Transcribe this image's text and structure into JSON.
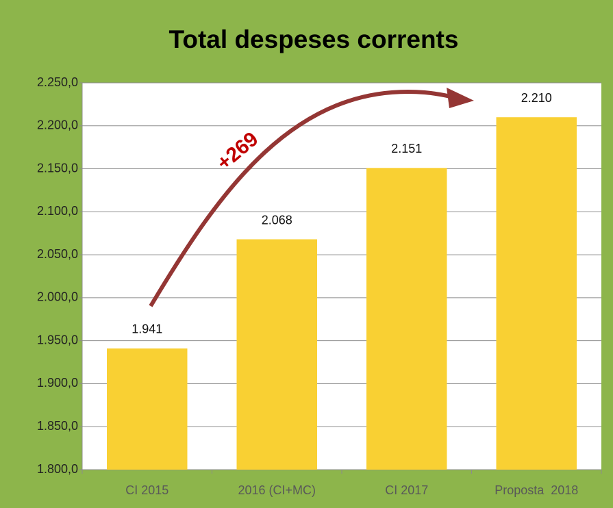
{
  "chart_data": {
    "type": "bar",
    "title": "Total despeses corrents",
    "categories": [
      "CI 2015",
      "2016 (CI+MC)",
      "CI 2017",
      "Proposta  2018"
    ],
    "values": [
      1941,
      2068,
      2151,
      2210
    ],
    "value_labels": [
      "1.941",
      "2.068",
      "2.151",
      "2.210"
    ],
    "color": "#f9d033",
    "ylim": [
      1800,
      2250
    ],
    "yticks": [
      {
        "value": 1800,
        "label": "1.800,0"
      },
      {
        "value": 1850,
        "label": "1.850,0"
      },
      {
        "value": 1900,
        "label": "1.900,0"
      },
      {
        "value": 1950,
        "label": "1.950,0"
      },
      {
        "value": 2000,
        "label": "2.000,0"
      },
      {
        "value": 2050,
        "label": "2.050,0"
      },
      {
        "value": 2100,
        "label": "2.100,0"
      },
      {
        "value": 2150,
        "label": "2.150,0"
      },
      {
        "value": 2200,
        "label": "2.200,0"
      },
      {
        "value": 2250,
        "label": "2.250,0"
      }
    ],
    "grid": true,
    "annotation": "+269"
  }
}
